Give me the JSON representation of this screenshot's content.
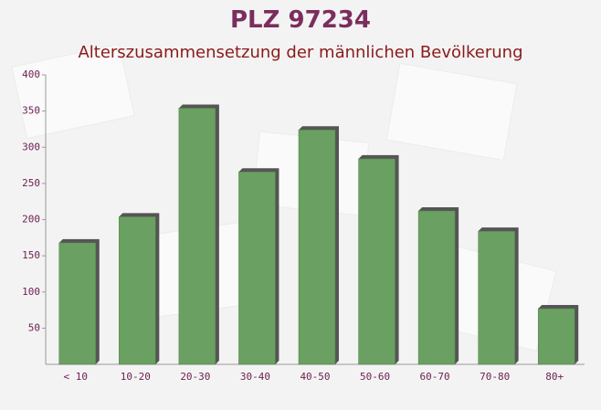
{
  "chart_data": {
    "type": "bar",
    "title": "PLZ 97234",
    "subtitle": "Alterszusammensetzung der männlichen Bevölkerung",
    "categories": [
      "< 10",
      "10-20",
      "20-30",
      "30-40",
      "40-50",
      "50-60",
      "60-70",
      "70-80",
      "80+"
    ],
    "values": [
      168,
      204,
      354,
      266,
      324,
      284,
      212,
      184,
      77
    ],
    "color": "#6aa061",
    "ylim": [
      0,
      400
    ],
    "yticks": [
      50,
      100,
      150,
      200,
      250,
      300,
      350,
      400
    ],
    "grid": false
  }
}
